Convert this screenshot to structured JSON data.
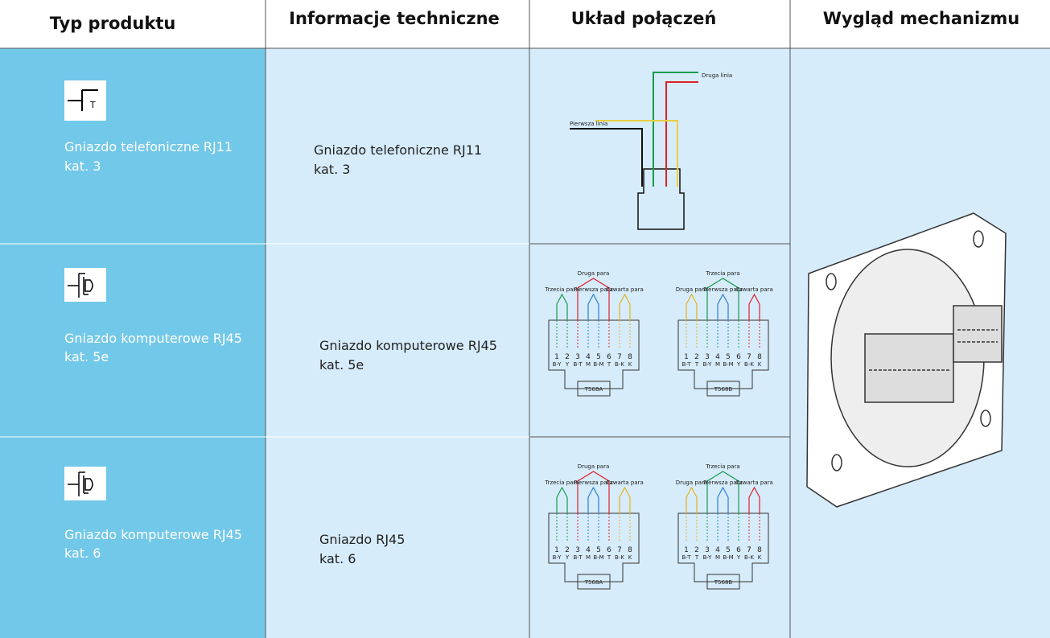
{
  "header": [
    "Typ produktu",
    "Informacje techniczne",
    "Układ połączeń",
    "Wygląd mechanizmu"
  ],
  "rows": [
    {
      "type": [
        "Gniazdo telefoniczne RJ11",
        "kat. 3"
      ],
      "info": [
        "Gniazdo telefoniczne RJ11",
        "kat. 3"
      ],
      "diagram": {
        "line2": "Druga linia",
        "line1": "Pierwsza linia"
      }
    },
    {
      "type": [
        "Gniazdo komputerowe RJ45",
        "kat. 5e"
      ],
      "info": [
        "Gniazdo komputerowe RJ45",
        "kat. 5e"
      ],
      "jacks": [
        {
          "standard": "T568A",
          "pins": [
            "1",
            "2",
            "3",
            "4",
            "5",
            "6",
            "7",
            "8"
          ],
          "codes": [
            "B-Y",
            "Y",
            "B-T",
            "M",
            "B-M",
            "T",
            "B-K",
            "K"
          ],
          "pairs": [
            {
              "name": "Trzecia para",
              "color": "#1a9a4a"
            },
            {
              "name": "Druga para",
              "color": "#e0202a"
            },
            {
              "name": "Pierwsza para",
              "color": "#2a7fd0"
            },
            {
              "name": "Czwarta para",
              "color": "#e8b020"
            }
          ]
        },
        {
          "standard": "T568B",
          "pins": [
            "1",
            "2",
            "3",
            "4",
            "5",
            "6",
            "7",
            "8"
          ],
          "codes": [
            "B-T",
            "T",
            "B-Y",
            "M",
            "B-M",
            "Y",
            "B-K",
            "K"
          ],
          "pairs": [
            {
              "name": "Druga para",
              "color": "#e8b020"
            },
            {
              "name": "Trzecia para",
              "color": "#1a9a4a"
            },
            {
              "name": "Pierwsza para",
              "color": "#2a7fd0"
            },
            {
              "name": "Czwarta para",
              "color": "#e0202a"
            }
          ]
        }
      ]
    },
    {
      "type": [
        "Gniazdo komputerowe RJ45",
        "kat. 6"
      ],
      "info": [
        "Gniazdo RJ45",
        "kat. 6"
      ],
      "jacks": [
        {
          "standard": "T568A",
          "pins": [
            "1",
            "2",
            "3",
            "4",
            "5",
            "6",
            "7",
            "8"
          ],
          "codes": [
            "B-Y",
            "Y",
            "B-T",
            "M",
            "B-M",
            "T",
            "B-K",
            "K"
          ],
          "pairs": [
            {
              "name": "Trzecia para",
              "color": "#1a9a4a"
            },
            {
              "name": "Druga para",
              "color": "#e0202a"
            },
            {
              "name": "Pierwsza para",
              "color": "#2a7fd0"
            },
            {
              "name": "Czwarta para",
              "color": "#e8b020"
            }
          ]
        },
        {
          "standard": "T568B",
          "pins": [
            "1",
            "2",
            "3",
            "4",
            "5",
            "6",
            "7",
            "8"
          ],
          "codes": [
            "B-T",
            "T",
            "B-Y",
            "M",
            "B-M",
            "Y",
            "B-K",
            "K"
          ],
          "pairs": [
            {
              "name": "Druga para",
              "color": "#e8b020"
            },
            {
              "name": "Trzecia para",
              "color": "#1a9a4a"
            },
            {
              "name": "Pierwsza para",
              "color": "#2a7fd0"
            },
            {
              "name": "Czwarta para",
              "color": "#e0202a"
            }
          ]
        }
      ]
    }
  ]
}
